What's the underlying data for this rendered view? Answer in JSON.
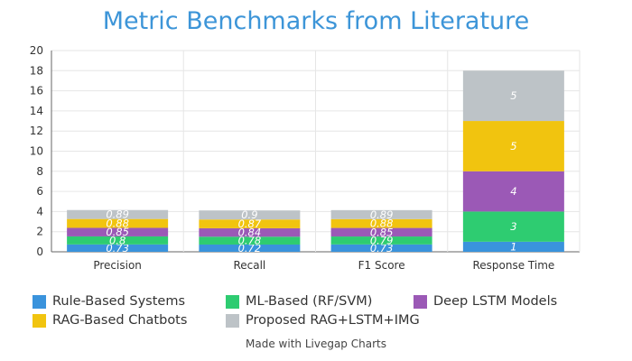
{
  "chart_data": {
    "type": "bar",
    "stacked": true,
    "title": "Metric Benchmarks from Literature",
    "categories": [
      "Precision",
      "Recall",
      "F1 Score",
      "Response Time"
    ],
    "ylim": [
      0,
      20
    ],
    "yticks": [
      0,
      2,
      4,
      6,
      8,
      10,
      12,
      14,
      16,
      18,
      20
    ],
    "grid": true,
    "series": [
      {
        "name": "Rule-Based Systems",
        "color": "#3a93dc",
        "values": [
          0.73,
          0.72,
          0.73,
          1
        ]
      },
      {
        "name": "ML-Based (RF/SVM)",
        "color": "#2ecc71",
        "values": [
          0.8,
          0.78,
          0.79,
          3
        ]
      },
      {
        "name": "Deep LSTM Models",
        "color": "#9b59b6",
        "values": [
          0.85,
          0.84,
          0.85,
          4
        ]
      },
      {
        "name": "RAG-Based Chatbots",
        "color": "#f1c40f",
        "values": [
          0.88,
          0.87,
          0.88,
          5
        ]
      },
      {
        "name": "Proposed RAG+LSTM+IMG",
        "color": "#bdc3c7",
        "values": [
          0.89,
          0.9,
          0.89,
          5
        ]
      }
    ]
  },
  "credit": "Made with Livegap Charts"
}
